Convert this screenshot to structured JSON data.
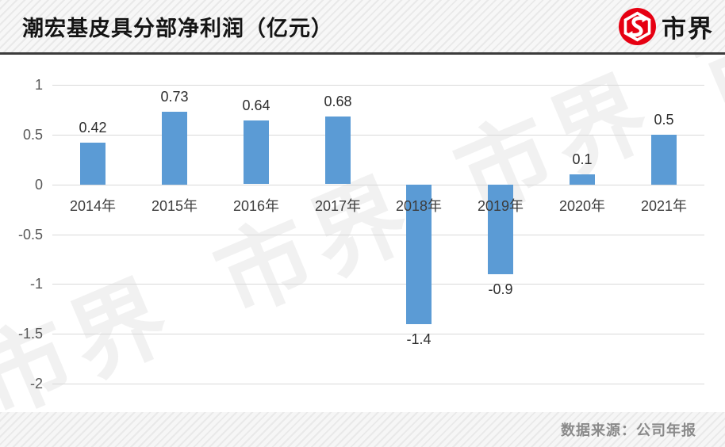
{
  "header": {
    "title": "潮宏基皮具分部净利润（亿元）",
    "logo_text": "市界"
  },
  "footer": {
    "source": "数据来源：公司年报"
  },
  "watermark": {
    "text": "市界 市界 市界 市界"
  },
  "colors": {
    "bar_blue": "#5B9BD5",
    "logo_red": "#E60012",
    "gridline": "#d9d9d9",
    "header_rule": "#3b3b3b"
  },
  "chart_data": {
    "type": "bar",
    "title": "潮宏基皮具分部净利润（亿元）",
    "categories": [
      "2014年",
      "2015年",
      "2016年",
      "2017年",
      "2018年",
      "2019年",
      "2020年",
      "2021年"
    ],
    "values": [
      0.42,
      0.73,
      0.64,
      0.68,
      -1.4,
      -0.9,
      0.1,
      0.5
    ],
    "labels": [
      "0.42",
      "0.73",
      "0.64",
      "0.68",
      "-1.4",
      "-0.9",
      "0.1",
      "0.5"
    ],
    "xlabel": "",
    "ylabel": "",
    "ylim": [
      -2,
      1
    ],
    "yticks": [
      "1",
      "0.5",
      "0",
      "-0.5",
      "-1",
      "-1.5",
      "-2"
    ],
    "grid": true,
    "legend": "none",
    "bar_color": "#5B9BD5",
    "source_note": "数据来源：公司年报"
  }
}
